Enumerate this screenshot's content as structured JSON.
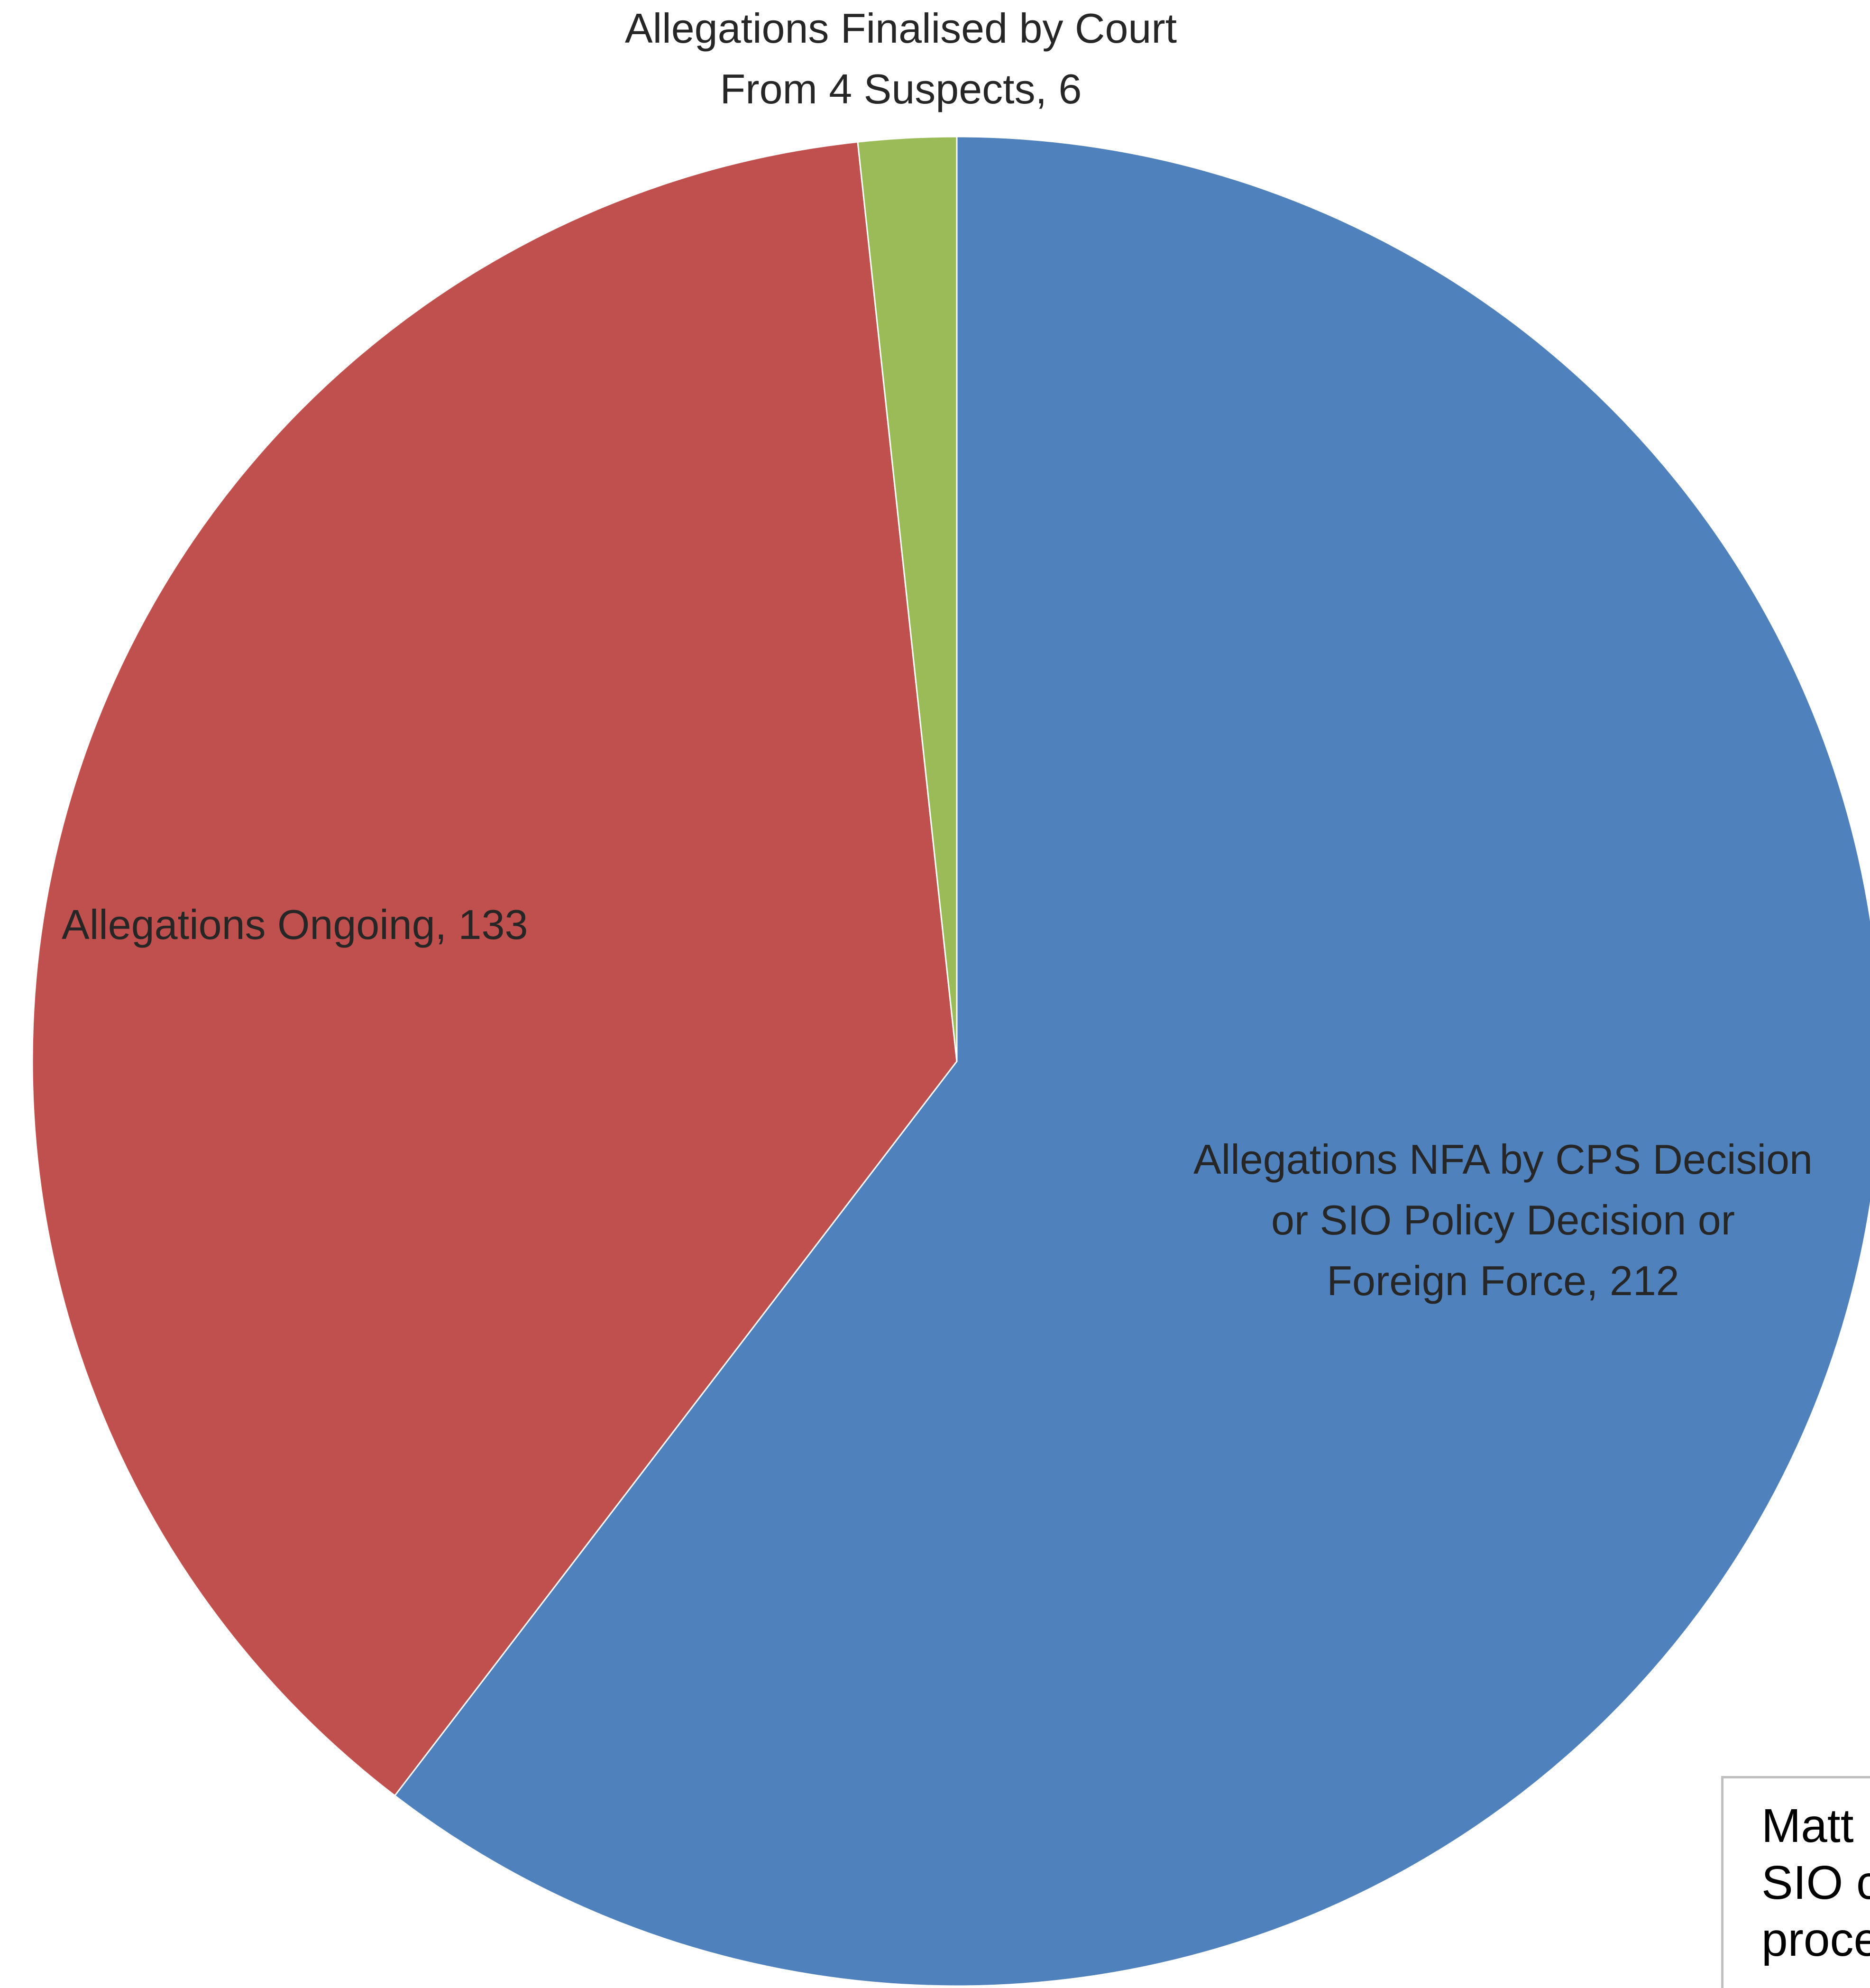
{
  "chart_data": {
    "type": "pie",
    "title": "",
    "start_angle": "12 o'clock, clockwise",
    "slices": [
      {
        "label_lines": [
          "Allegations NFA by CPS Decision",
          "or SIO Policy Decision or",
          "Foreign Force, 212"
        ],
        "value": 212,
        "color": "#4F81BD"
      },
      {
        "label_lines": [
          "Allegations Ongoing, 133"
        ],
        "value": 133,
        "color": "#C0504D"
      },
      {
        "label_lines": [
          "Allegations Finalised by Court",
          "From 4 Suspects, 6"
        ],
        "value": 6,
        "color": "#9BBB59"
      }
    ]
  },
  "note_box": {
    "lines": [
      "Matt",
      "SIO c",
      "proce"
    ]
  }
}
